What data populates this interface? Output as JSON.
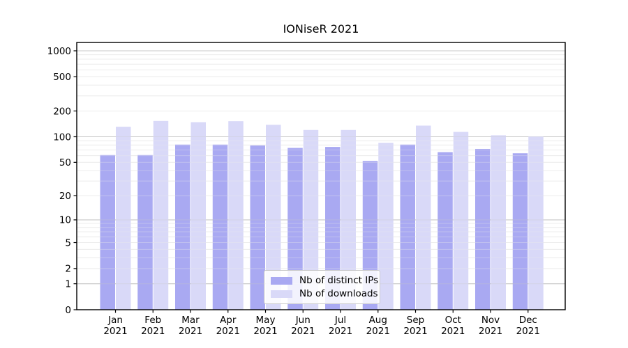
{
  "chart_data": {
    "type": "bar",
    "title": "IONiseR 2021",
    "categories": [
      "Jan",
      "Feb",
      "Mar",
      "Apr",
      "May",
      "Jun",
      "Jul",
      "Aug",
      "Sep",
      "Oct",
      "Nov",
      "Dec"
    ],
    "x_tick_year": "2021",
    "series": [
      {
        "name": "Nb of distinct IPs",
        "color": "#a9a9f2",
        "values": [
          61,
          61,
          81,
          81,
          79,
          74,
          76,
          52,
          81,
          66,
          72,
          64
        ]
      },
      {
        "name": "Nb of downloads",
        "color": "#d9d9f8",
        "values": [
          131,
          153,
          148,
          152,
          138,
          120,
          120,
          85,
          135,
          114,
          104,
          101
        ]
      }
    ],
    "yaxis": {
      "scale": "log10(value+1)",
      "min": 0,
      "max": 1250,
      "tick_values": [
        0,
        1,
        2,
        5,
        10,
        20,
        50,
        100,
        200,
        500,
        1000
      ],
      "tick_labels": [
        "0",
        "1",
        "2",
        "5",
        "10",
        "20",
        "50",
        "100",
        "200",
        "500",
        "1000"
      ],
      "grid": true
    },
    "legend": {
      "position": "inside-bottom-center"
    },
    "colors": {
      "grid_major": "#c9c9c9",
      "grid_minor": "#ececec",
      "axis": "#000000",
      "background": "#ffffff"
    }
  }
}
